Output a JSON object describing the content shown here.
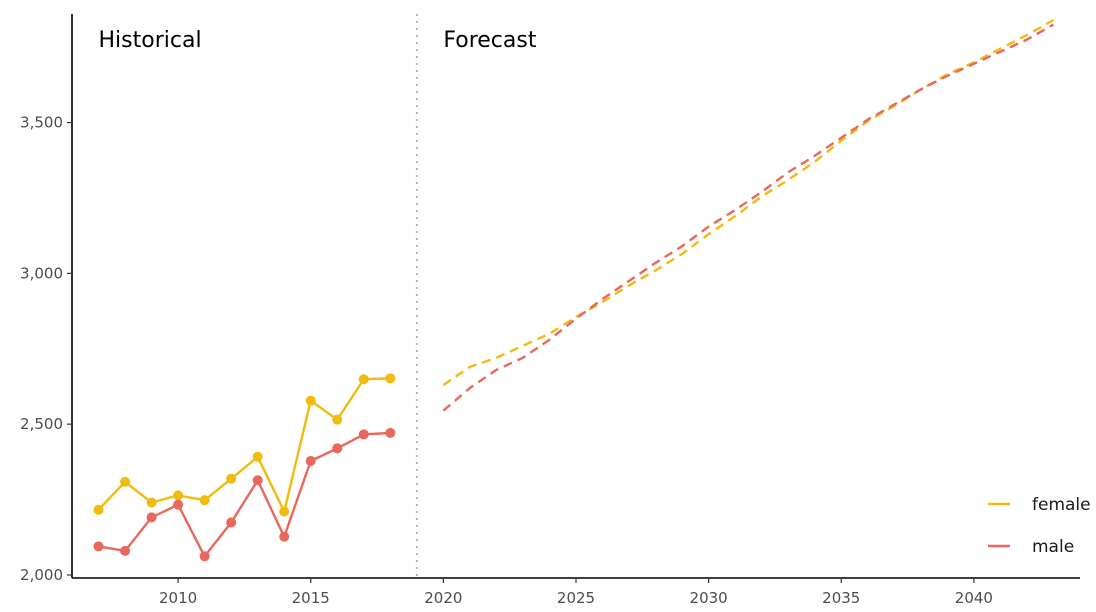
{
  "chart_data": {
    "type": "line",
    "title": "",
    "xlabel": "",
    "ylabel": "",
    "xlim": [
      2006,
      2044
    ],
    "ylim": [
      1990,
      3860
    ],
    "x_ticks": [
      2010,
      2015,
      2020,
      2025,
      2030,
      2035,
      2040
    ],
    "x_tick_labels": [
      "2010",
      "2015",
      "2020",
      "2025",
      "2030",
      "2035",
      "2040"
    ],
    "y_ticks": [
      2000,
      2500,
      3000,
      3500
    ],
    "y_tick_labels": [
      "2,000",
      "2,500",
      "3,000",
      "3,500"
    ],
    "divider_x": 2019,
    "annotations": [
      {
        "text": "Historical",
        "x": 2007.0,
        "y": 3750
      },
      {
        "text": "Forecast",
        "x": 2020.0,
        "y": 3750
      }
    ],
    "legend": {
      "position": "bottom-right",
      "entries": [
        "female",
        "male"
      ]
    },
    "grid": false,
    "series": [
      {
        "name": "female",
        "color": "#F2BB0F",
        "historical": {
          "x": [
            2007,
            2008,
            2009,
            2010,
            2011,
            2012,
            2013,
            2014,
            2015,
            2016,
            2017,
            2018
          ],
          "y": [
            2216,
            2309,
            2240,
            2264,
            2248,
            2319,
            2392,
            2210,
            2578,
            2515,
            2649,
            2652
          ]
        },
        "forecast": {
          "x": [
            2020,
            2021,
            2022,
            2023,
            2024,
            2025,
            2026,
            2027,
            2028,
            2029,
            2030,
            2031,
            2032,
            2033,
            2034,
            2035,
            2036,
            2037,
            2038,
            2039,
            2040,
            2041,
            2042,
            2043
          ],
          "y": [
            2630,
            2690,
            2720,
            2760,
            2800,
            2855,
            2905,
            2960,
            3010,
            3065,
            3130,
            3190,
            3255,
            3310,
            3370,
            3440,
            3505,
            3555,
            3610,
            3660,
            3700,
            3745,
            3790,
            3840
          ]
        }
      },
      {
        "name": "male",
        "color": "#E8685E",
        "historical": {
          "x": [
            2007,
            2008,
            2009,
            2010,
            2011,
            2012,
            2013,
            2014,
            2015,
            2016,
            2017,
            2018
          ],
          "y": [
            2095,
            2080,
            2191,
            2233,
            2062,
            2174,
            2314,
            2127,
            2378,
            2420,
            2466,
            2471
          ]
        },
        "forecast": {
          "x": [
            2020,
            2021,
            2022,
            2023,
            2024,
            2025,
            2026,
            2027,
            2028,
            2029,
            2030,
            2031,
            2032,
            2033,
            2034,
            2035,
            2036,
            2037,
            2038,
            2039,
            2040,
            2041,
            2042,
            2043
          ],
          "y": [
            2545,
            2620,
            2680,
            2720,
            2780,
            2850,
            2915,
            2975,
            3035,
            3090,
            3155,
            3210,
            3270,
            3335,
            3390,
            3450,
            3510,
            3560,
            3610,
            3655,
            3695,
            3735,
            3775,
            3825
          ]
        }
      }
    ]
  }
}
